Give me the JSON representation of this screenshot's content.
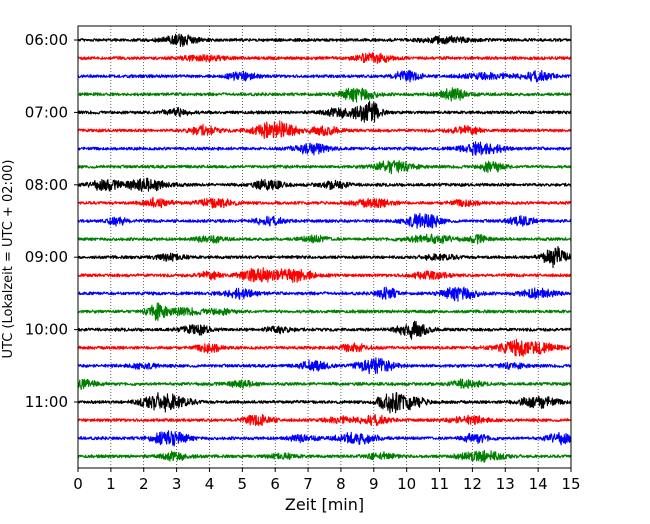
{
  "chart_data": {
    "type": "line",
    "subtype": "seismogram-helicorder",
    "xlabel": "Zeit  [min]",
    "ylabel": "UTC (Lokalzeit = UTC + 02:00)",
    "xlim": [
      0,
      15
    ],
    "x_ticks": [
      "0",
      "1",
      "2",
      "3",
      "4",
      "5",
      "6",
      "7",
      "8",
      "9",
      "10",
      "11",
      "12",
      "13",
      "14",
      "15"
    ],
    "y_tick_labels": [
      "06:00",
      "07:00",
      "08:00",
      "09:00",
      "10:00",
      "11:00"
    ],
    "grid": "vertical dotted at each minute",
    "trace_colors": [
      "#000000",
      "#ff0000",
      "#0000ff",
      "#008000"
    ],
    "trace_interval_min": 15,
    "start_time": "06:00",
    "traces": [
      {
        "time": "06:00",
        "bursts": [
          [
            3.1,
            0.35,
            0.55
          ],
          [
            11.2,
            0.5,
            0.3
          ]
        ]
      },
      {
        "time": "06:15",
        "bursts": [
          [
            9.0,
            0.35,
            0.5
          ],
          [
            3.8,
            0.5,
            0.25
          ]
        ]
      },
      {
        "time": "06:30",
        "bursts": [
          [
            5.0,
            0.3,
            0.4
          ],
          [
            10.0,
            0.3,
            0.45
          ],
          [
            14.0,
            0.3,
            0.45
          ],
          [
            12.5,
            0.6,
            0.25
          ]
        ]
      },
      {
        "time": "06:45",
        "bursts": [
          [
            8.5,
            0.35,
            0.7
          ],
          [
            11.4,
            0.3,
            0.6
          ]
        ]
      },
      {
        "time": "07:00",
        "bursts": [
          [
            8.2,
            0.4,
            0.6
          ],
          [
            8.9,
            0.2,
            1.0
          ],
          [
            3.0,
            0.3,
            0.35
          ]
        ]
      },
      {
        "time": "07:15",
        "bursts": [
          [
            6.0,
            0.45,
            0.85
          ],
          [
            3.8,
            0.3,
            0.45
          ],
          [
            7.5,
            0.3,
            0.45
          ],
          [
            11.8,
            0.3,
            0.4
          ]
        ]
      },
      {
        "time": "07:30",
        "bursts": [
          [
            7.1,
            0.35,
            0.55
          ],
          [
            12.3,
            0.4,
            0.65
          ]
        ]
      },
      {
        "time": "07:45",
        "bursts": [
          [
            9.6,
            0.4,
            0.6
          ],
          [
            12.6,
            0.25,
            0.5
          ]
        ]
      },
      {
        "time": "08:00",
        "bursts": [
          [
            0.8,
            0.3,
            0.5
          ],
          [
            2.1,
            0.45,
            0.6
          ],
          [
            5.8,
            0.3,
            0.5
          ],
          [
            7.8,
            0.3,
            0.35
          ]
        ]
      },
      {
        "time": "08:15",
        "bursts": [
          [
            2.4,
            0.3,
            0.4
          ],
          [
            4.2,
            0.35,
            0.45
          ],
          [
            9.0,
            0.4,
            0.4
          ],
          [
            11.8,
            0.3,
            0.3
          ]
        ]
      },
      {
        "time": "08:30",
        "bursts": [
          [
            10.5,
            0.35,
            0.8
          ],
          [
            1.2,
            0.2,
            0.45
          ],
          [
            5.8,
            0.3,
            0.4
          ],
          [
            13.5,
            0.3,
            0.4
          ]
        ]
      },
      {
        "time": "08:45",
        "bursts": [
          [
            10.7,
            0.5,
            0.4
          ],
          [
            4.0,
            0.3,
            0.3
          ],
          [
            7.2,
            0.3,
            0.3
          ],
          [
            12.2,
            0.2,
            0.35
          ]
        ]
      },
      {
        "time": "09:00",
        "bursts": [
          [
            14.5,
            0.25,
            0.95
          ],
          [
            2.8,
            0.3,
            0.35
          ],
          [
            11.0,
            0.35,
            0.3
          ]
        ]
      },
      {
        "time": "09:15",
        "bursts": [
          [
            5.5,
            0.4,
            0.6
          ],
          [
            6.6,
            0.4,
            0.6
          ],
          [
            4.0,
            0.25,
            0.35
          ],
          [
            10.7,
            0.4,
            0.35
          ]
        ]
      },
      {
        "time": "09:30",
        "bursts": [
          [
            11.6,
            0.35,
            0.7
          ],
          [
            4.9,
            0.35,
            0.45
          ],
          [
            9.4,
            0.2,
            0.6
          ],
          [
            14.0,
            0.35,
            0.5
          ]
        ]
      },
      {
        "time": "09:45",
        "bursts": [
          [
            2.4,
            0.2,
            0.8
          ],
          [
            3.2,
            0.4,
            0.3
          ],
          [
            4.3,
            0.3,
            0.25
          ]
        ]
      },
      {
        "time": "10:00",
        "bursts": [
          [
            10.2,
            0.3,
            0.9
          ],
          [
            3.6,
            0.3,
            0.45
          ],
          [
            6.1,
            0.3,
            0.3
          ]
        ]
      },
      {
        "time": "10:15",
        "bursts": [
          [
            13.6,
            0.55,
            0.75
          ],
          [
            4.0,
            0.25,
            0.5
          ],
          [
            8.4,
            0.3,
            0.4
          ]
        ]
      },
      {
        "time": "10:30",
        "bursts": [
          [
            9.0,
            0.4,
            0.7
          ],
          [
            7.2,
            0.3,
            0.5
          ],
          [
            2.0,
            0.3,
            0.25
          ],
          [
            13.2,
            0.3,
            0.25
          ]
        ]
      },
      {
        "time": "10:45",
        "bursts": [
          [
            0.2,
            0.25,
            0.5
          ],
          [
            11.8,
            0.3,
            0.4
          ],
          [
            5.0,
            0.3,
            0.3
          ]
        ]
      },
      {
        "time": "11:00",
        "bursts": [
          [
            2.8,
            0.4,
            0.8
          ],
          [
            9.5,
            0.25,
            0.9
          ],
          [
            10.1,
            0.35,
            0.55
          ],
          [
            14.0,
            0.4,
            0.6
          ],
          [
            2.2,
            0.3,
            0.4
          ]
        ]
      },
      {
        "time": "11:15",
        "bursts": [
          [
            5.5,
            0.3,
            0.5
          ],
          [
            9.0,
            0.3,
            0.45
          ],
          [
            11.9,
            0.4,
            0.35
          ],
          [
            8.0,
            0.3,
            0.3
          ]
        ]
      },
      {
        "time": "11:30",
        "bursts": [
          [
            2.8,
            0.35,
            0.8
          ],
          [
            8.5,
            0.4,
            0.55
          ],
          [
            14.7,
            0.3,
            0.5
          ],
          [
            12.1,
            0.3,
            0.4
          ],
          [
            6.8,
            0.3,
            0.3
          ]
        ]
      },
      {
        "time": "11:45",
        "bursts": [
          [
            12.3,
            0.45,
            0.55
          ],
          [
            3.0,
            0.3,
            0.4
          ],
          [
            9.2,
            0.3,
            0.3
          ],
          [
            6.2,
            0.3,
            0.25
          ]
        ]
      }
    ]
  }
}
